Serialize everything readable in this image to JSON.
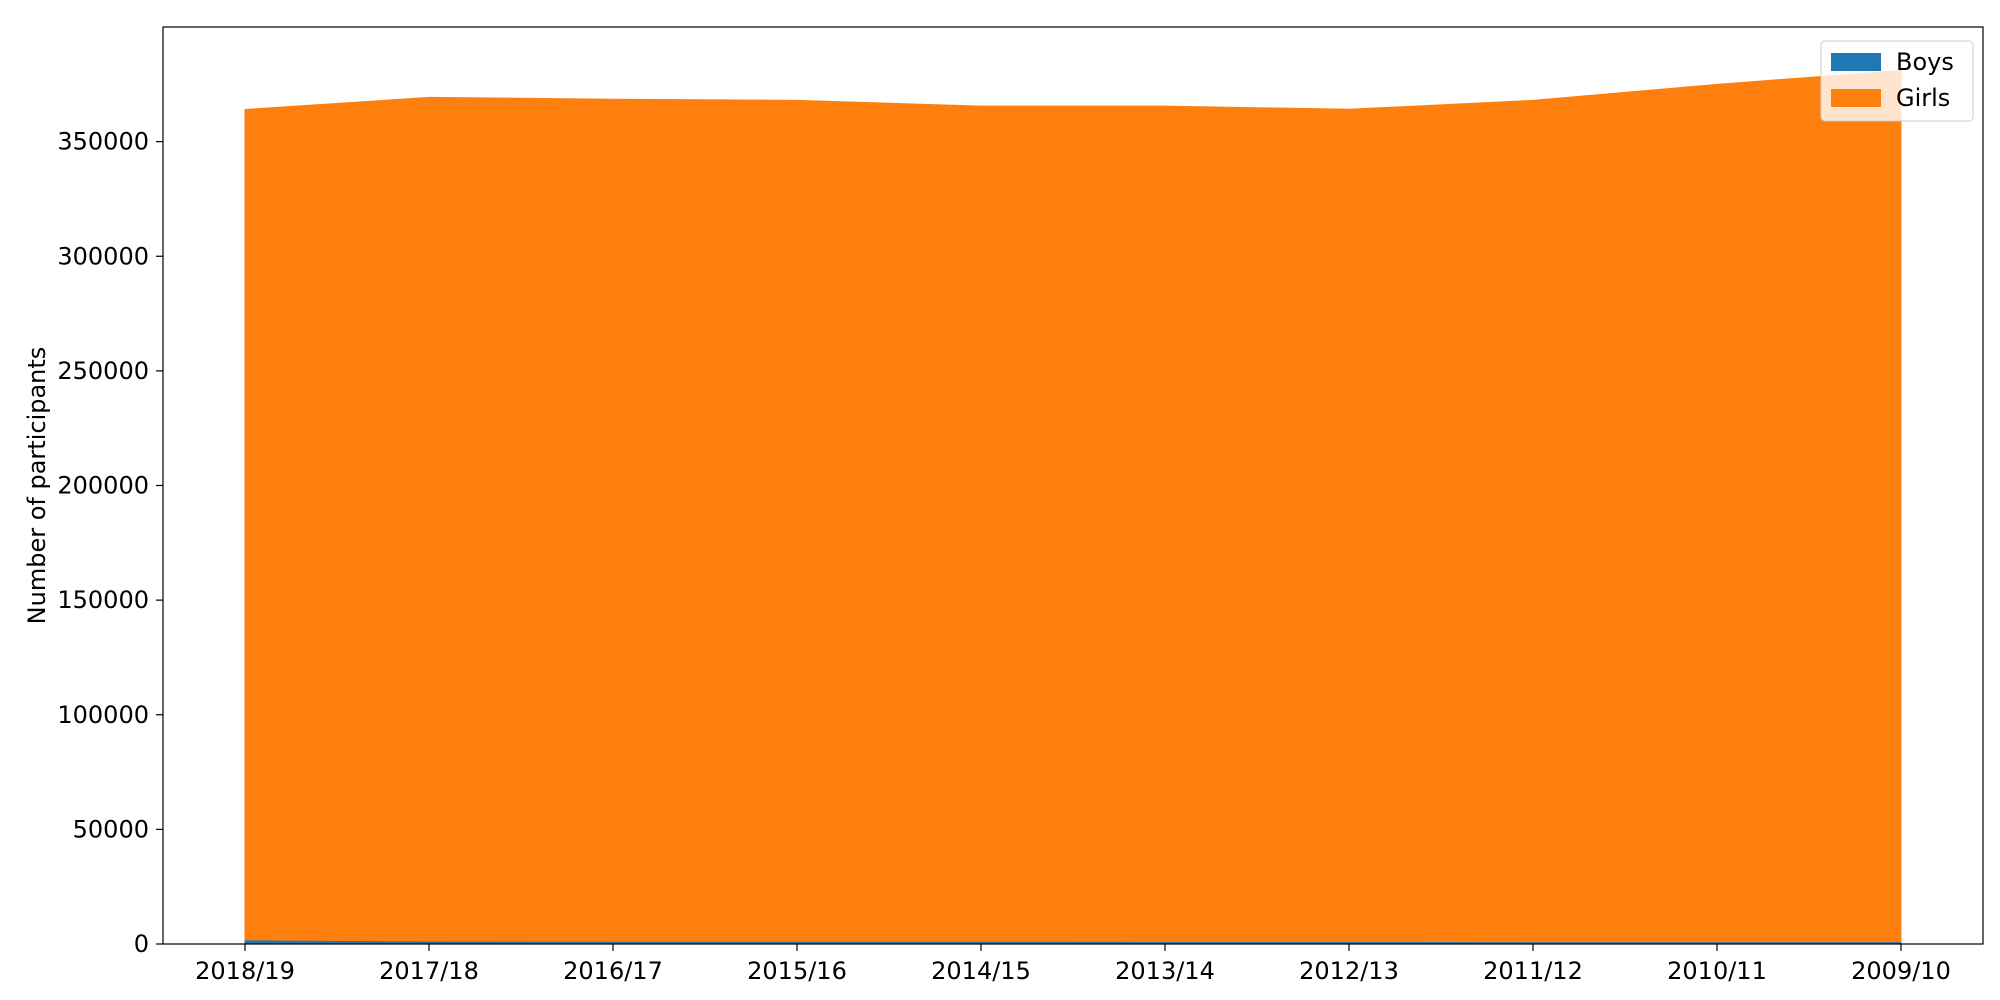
{
  "chart_data": {
    "type": "area",
    "stacked": true,
    "title": "",
    "xlabel": "",
    "ylabel": "Number of participants",
    "x": [
      "2018/19",
      "2017/18",
      "2016/17",
      "2015/16",
      "2014/15",
      "2013/14",
      "2012/13",
      "2011/12",
      "2010/11",
      "2009/10"
    ],
    "ylim": [
      0,
      400000
    ],
    "yticks": [
      0,
      50000,
      100000,
      150000,
      200000,
      250000,
      300000,
      350000
    ],
    "ytick_labels": [
      "0",
      "50000",
      "100000",
      "150000",
      "200000",
      "250000",
      "300000",
      "350000"
    ],
    "series": [
      {
        "name": "Boys",
        "color": "#1f77b4",
        "values": [
          1800,
          1300,
          1200,
          1200,
          1200,
          1100,
          1100,
          1000,
          1000,
          1000
        ]
      },
      {
        "name": "Girls",
        "color": "#ff7f0e",
        "values": [
          362200,
          368000,
          367300,
          366800,
          364300,
          364400,
          363000,
          367000,
          374000,
          380000
        ]
      }
    ],
    "legend_position": "top-right",
    "grid": false
  }
}
